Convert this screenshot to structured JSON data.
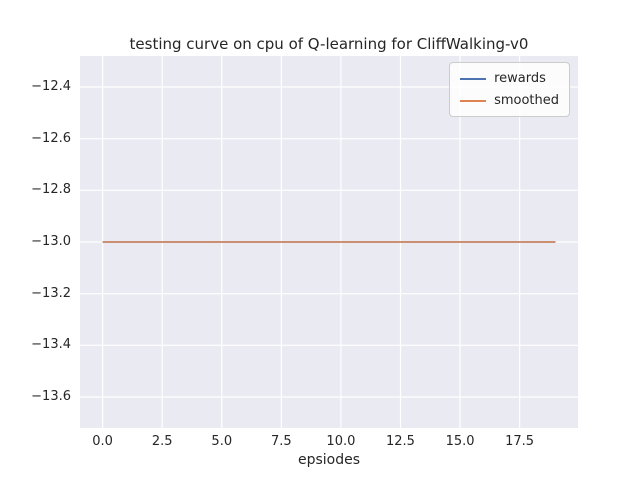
{
  "figure": {
    "background": "#ffffff"
  },
  "chart_data": {
    "type": "line",
    "title": "testing curve on cpu of Q-learning for CliffWalking-v0",
    "xlabel": "epsiodes",
    "ylabel": "",
    "xlim": [
      -0.95,
      19.95
    ],
    "ylim": [
      -13.72,
      -12.28
    ],
    "grid": true,
    "axes_background": "#eaeaf2",
    "grid_color": "#ffffff",
    "text_color": "#262626",
    "legend_position": "upper right",
    "x": [
      0,
      1,
      2,
      3,
      4,
      5,
      6,
      7,
      8,
      9,
      10,
      11,
      12,
      13,
      14,
      15,
      16,
      17,
      18,
      19
    ],
    "series": [
      {
        "name": "rewards",
        "color": "#4c72b0",
        "values": [
          -13,
          -13,
          -13,
          -13,
          -13,
          -13,
          -13,
          -13,
          -13,
          -13,
          -13,
          -13,
          -13,
          -13,
          -13,
          -13,
          -13,
          -13,
          -13,
          -13
        ]
      },
      {
        "name": "smoothed",
        "color": "#dd8452",
        "values": [
          -13,
          -13,
          -13,
          -13,
          -13,
          -13,
          -13,
          -13,
          -13,
          -13,
          -13,
          -13,
          -13,
          -13,
          -13,
          -13,
          -13,
          -13,
          -13,
          -13
        ]
      }
    ],
    "x_ticks": {
      "values": [
        0,
        2.5,
        5,
        7.5,
        10,
        12.5,
        15,
        17.5
      ],
      "labels": [
        "0.0",
        "2.5",
        "5.0",
        "7.5",
        "10.0",
        "12.5",
        "15.0",
        "17.5"
      ]
    },
    "y_ticks": {
      "values": [
        -12.4,
        -12.6,
        -12.8,
        -13.0,
        -13.2,
        -13.4,
        -13.6
      ],
      "labels": [
        "−12.4",
        "−12.6",
        "−12.8",
        "−13.0",
        "−13.2",
        "−13.4",
        "−13.6"
      ]
    }
  }
}
